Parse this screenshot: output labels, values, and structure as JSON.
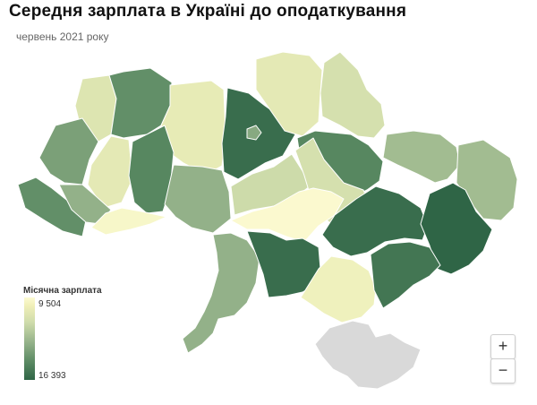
{
  "title": "Середня зарплата в Україні до оподаткування",
  "subtitle": "червень 2021 року",
  "legend": {
    "title": "Місячна зарплата",
    "min_label": "9 504",
    "max_label": "16 393",
    "color_min": "#fdfbd2",
    "color_max": "#2f6546"
  },
  "controls": {
    "zoom_in": "+",
    "zoom_out": "−"
  },
  "colors": {
    "no_data": "#d9d9d9",
    "border": "#ffffff"
  },
  "regions": [
    {
      "id": "volyn",
      "level": 0.25
    },
    {
      "id": "rivne",
      "level": 0.75
    },
    {
      "id": "zhytomyr",
      "level": 0.18
    },
    {
      "id": "kyiv-oblast",
      "level": 0.95
    },
    {
      "id": "kyiv-city",
      "level": 0.6
    },
    {
      "id": "chernihiv",
      "level": 0.2
    },
    {
      "id": "sumy",
      "level": 0.3
    },
    {
      "id": "kharkiv",
      "level": 0.8
    },
    {
      "id": "luhansk",
      "level": 0.5
    },
    {
      "id": "lviv",
      "level": 0.65
    },
    {
      "id": "ternopil",
      "level": 0.2
    },
    {
      "id": "khmelnytskyi",
      "level": 0.8
    },
    {
      "id": "vinnytsia",
      "level": 0.55
    },
    {
      "id": "cherkasy",
      "level": 0.35
    },
    {
      "id": "poltava",
      "level": 0.3
    },
    {
      "id": "zakarpattia",
      "level": 0.75
    },
    {
      "id": "ivano-frankivsk",
      "level": 0.55
    },
    {
      "id": "chernivtsi",
      "level": 0.05
    },
    {
      "id": "kirovohrad",
      "level": 0.02
    },
    {
      "id": "dnipropetrovsk",
      "level": 0.95
    },
    {
      "id": "donetsk",
      "level": 1.0
    },
    {
      "id": "odesa",
      "level": 0.55
    },
    {
      "id": "mykolaiv",
      "level": 0.95
    },
    {
      "id": "kherson",
      "level": 0.12
    },
    {
      "id": "zaporizhzhia",
      "level": 0.9
    },
    {
      "id": "crimea",
      "level": null
    }
  ]
}
